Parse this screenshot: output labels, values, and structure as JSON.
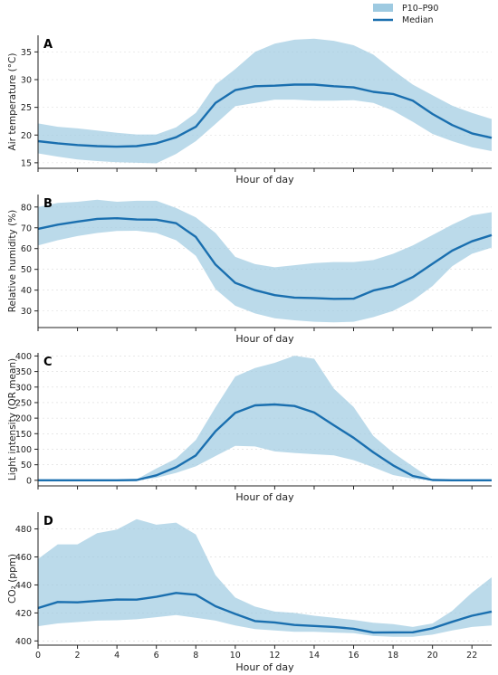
{
  "legend": {
    "band_label": "P10–P90",
    "line_label": "Median",
    "band_color": "#9ecae1",
    "line_color": "#1a6faf"
  },
  "chart_data": [
    {
      "type": "line",
      "letter": "A",
      "ylabel": "Air temperature (°C)",
      "xlabel": "Hour of day",
      "ylim": [
        14,
        38
      ],
      "yticks": [
        15,
        20,
        25,
        30,
        35
      ],
      "show_xtick_labels": false,
      "grid": true,
      "x": [
        0,
        1,
        2,
        3,
        4,
        5,
        6,
        7,
        8,
        9,
        10,
        11,
        12,
        13,
        14,
        15,
        16,
        17,
        18,
        19,
        20,
        21,
        22,
        23
      ],
      "series": [
        {
          "name": "Median",
          "values": [
            18.9,
            18.5,
            18.2,
            18.0,
            17.9,
            18.0,
            18.5,
            19.6,
            21.5,
            25.8,
            28.1,
            28.8,
            28.9,
            29.1,
            29.1,
            28.8,
            28.6,
            27.8,
            27.4,
            26.2,
            23.8,
            21.8,
            20.3,
            19.5
          ]
        },
        {
          "name": "P10",
          "values": [
            16.7,
            16.1,
            15.6,
            15.3,
            15.1,
            15.0,
            14.9,
            16.6,
            18.9,
            22.0,
            25.2,
            25.8,
            26.4,
            26.4,
            26.2,
            26.2,
            26.3,
            25.8,
            24.4,
            22.4,
            20.2,
            18.9,
            17.8,
            17.1
          ]
        },
        {
          "name": "P90",
          "values": [
            22.1,
            21.5,
            21.2,
            20.8,
            20.4,
            20.1,
            20.1,
            21.4,
            24.0,
            29.1,
            31.9,
            35.0,
            36.5,
            37.2,
            37.4,
            37.0,
            36.2,
            34.5,
            31.7,
            29.1,
            27.2,
            25.3,
            24.0,
            22.9
          ]
        }
      ]
    },
    {
      "type": "line",
      "letter": "B",
      "ylabel": "Relative humidity (%)",
      "xlabel": "Hour of day",
      "ylim": [
        22,
        86
      ],
      "yticks": [
        30,
        40,
        50,
        60,
        70,
        80
      ],
      "show_xtick_labels": false,
      "grid": true,
      "x": [
        0,
        1,
        2,
        3,
        4,
        5,
        6,
        7,
        8,
        9,
        10,
        11,
        12,
        13,
        14,
        15,
        16,
        17,
        18,
        19,
        20,
        21,
        22,
        23
      ],
      "series": [
        {
          "name": "Median",
          "values": [
            69.5,
            71.5,
            73.0,
            74.3,
            74.6,
            74.0,
            73.9,
            72.2,
            65.6,
            52.3,
            43.5,
            40.0,
            37.6,
            36.4,
            36.2,
            35.8,
            35.9,
            39.8,
            41.9,
            46.3,
            52.7,
            59.0,
            63.5,
            66.5
          ]
        },
        {
          "name": "P10",
          "values": [
            61.5,
            64.0,
            66.0,
            67.5,
            68.5,
            68.6,
            67.5,
            64.0,
            56.5,
            40.5,
            32.5,
            28.8,
            26.5,
            25.5,
            24.8,
            24.5,
            24.8,
            27.0,
            30.0,
            35.0,
            42.0,
            51.5,
            57.5,
            60.5
          ]
        },
        {
          "name": "P90",
          "values": [
            80.0,
            82.0,
            82.5,
            83.5,
            82.5,
            83.0,
            83.0,
            79.5,
            75.0,
            67.5,
            56.0,
            52.5,
            51.0,
            52.0,
            53.0,
            53.5,
            53.5,
            54.5,
            57.5,
            61.5,
            66.5,
            71.5,
            76.0,
            77.5
          ]
        }
      ]
    },
    {
      "type": "line",
      "letter": "C",
      "ylabel": "Light intensity (QR mean)",
      "xlabel": "Hour of day",
      "ylim": [
        -18,
        410
      ],
      "yticks": [
        0,
        50,
        100,
        150,
        200,
        250,
        300,
        350,
        400
      ],
      "show_xtick_labels": false,
      "grid": true,
      "x": [
        0,
        1,
        2,
        3,
        4,
        5,
        6,
        7,
        8,
        9,
        10,
        11,
        12,
        13,
        14,
        15,
        16,
        17,
        18,
        19,
        20,
        21,
        22,
        23
      ],
      "series": [
        {
          "name": "Median",
          "values": [
            0,
            0,
            0,
            0,
            0,
            1,
            16,
            42,
            80,
            158,
            217,
            241,
            244,
            239,
            218,
            177,
            137,
            90,
            48,
            14,
            1,
            0,
            0,
            0
          ]
        },
        {
          "name": "P10",
          "values": [
            0,
            0,
            0,
            0,
            0,
            0,
            8,
            24,
            45,
            78,
            111,
            109,
            93,
            88,
            84,
            80,
            65,
            42,
            17,
            5,
            0,
            0,
            0,
            0
          ]
        },
        {
          "name": "P90",
          "values": [
            0,
            0,
            0,
            0,
            0,
            3,
            38,
            70,
            130,
            235,
            334,
            361,
            378,
            401,
            391,
            295,
            236,
            143,
            89,
            45,
            2,
            0,
            0,
            0
          ]
        }
      ]
    },
    {
      "type": "line",
      "letter": "D",
      "ylabel": "CO₂ (ppm)",
      "xlabel": "Hour of day",
      "ylim": [
        397,
        492
      ],
      "yticks": [
        400,
        420,
        440,
        460,
        480
      ],
      "xticks": [
        0,
        2,
        4,
        6,
        8,
        10,
        12,
        14,
        16,
        18,
        20,
        22
      ],
      "show_xtick_labels": true,
      "grid": true,
      "x": [
        0,
        1,
        2,
        3,
        4,
        5,
        6,
        7,
        8,
        9,
        10,
        11,
        12,
        13,
        14,
        15,
        16,
        17,
        18,
        19,
        20,
        21,
        22,
        23
      ],
      "series": [
        {
          "name": "Median",
          "values": [
            423.5,
            427.8,
            427.6,
            428.6,
            429.6,
            429.5,
            431.5,
            434.3,
            433.0,
            424.8,
            419.3,
            414.2,
            413.2,
            411.4,
            410.7,
            410.0,
            408.7,
            406.0,
            406.1,
            406.2,
            409.0,
            413.7,
            418.0,
            421.0
          ]
        },
        {
          "name": "P10",
          "values": [
            410.5,
            412.5,
            413.5,
            414.5,
            414.8,
            415.5,
            417.0,
            418.5,
            416.5,
            414.5,
            411.0,
            408.5,
            407.5,
            406.5,
            406.5,
            406.0,
            405.5,
            403.5,
            403.0,
            403.0,
            404.5,
            407.5,
            410.0,
            411.0
          ]
        },
        {
          "name": "P90",
          "values": [
            458.5,
            469.0,
            469.0,
            477.0,
            479.5,
            487.0,
            483.0,
            484.5,
            476.0,
            447.0,
            431.0,
            424.5,
            421.0,
            420.0,
            418.0,
            416.5,
            415.0,
            413.0,
            412.0,
            410.0,
            412.5,
            421.5,
            434.5,
            445.5
          ]
        }
      ]
    }
  ]
}
